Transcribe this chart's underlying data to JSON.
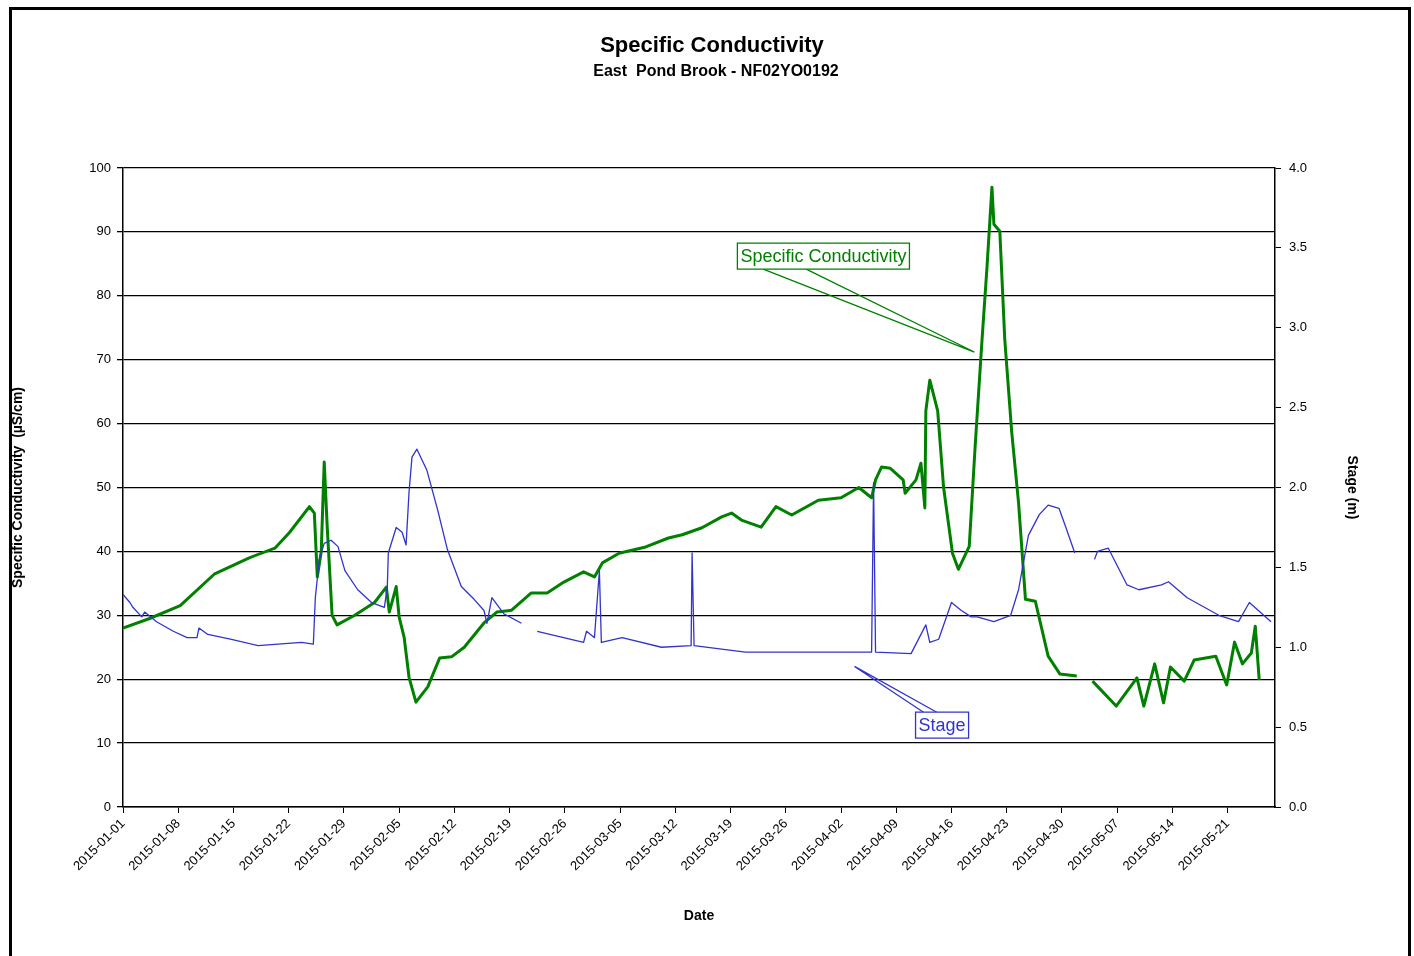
{
  "chart_data": {
    "type": "line",
    "title": "Specific Conductivity",
    "subtitle": "East  Pond Brook - NF02YO0192",
    "xlabel": "Date",
    "ylabel": "Specific Conductivity  (µS/cm)",
    "y2label": "Stage (m)",
    "xlim": [
      "2015-01-01",
      "2015-05-27"
    ],
    "xticks": [
      "2015-01-01",
      "2015-01-08",
      "2015-01-15",
      "2015-01-22",
      "2015-01-29",
      "2015-02-05",
      "2015-02-12",
      "2015-02-19",
      "2015-02-26",
      "2015-03-05",
      "2015-03-12",
      "2015-03-19",
      "2015-03-26",
      "2015-04-02",
      "2015-04-09",
      "2015-04-16",
      "2015-04-23",
      "2015-04-30",
      "2015-05-07",
      "2015-05-14",
      "2015-05-21"
    ],
    "ylim": [
      0,
      100
    ],
    "yticks": [
      0,
      10,
      20,
      30,
      40,
      50,
      60,
      70,
      80,
      90,
      100
    ],
    "y2lim": [
      0,
      4
    ],
    "y2ticks": [
      {
        "value": 0,
        "label": "0.0"
      },
      {
        "value": 0.5,
        "label": "0.5"
      },
      {
        "value": 1,
        "label": "1.0"
      },
      {
        "value": 1.5,
        "label": "1.5"
      },
      {
        "value": 2,
        "label": "2.0"
      },
      {
        "value": 2.5,
        "label": "2.5"
      },
      {
        "value": 3,
        "label": "3.0"
      },
      {
        "value": 3.5,
        "label": "3.5"
      },
      {
        "value": 4,
        "label": "4.0"
      }
    ],
    "grid": "y",
    "legend": false,
    "series": [
      {
        "name": "Specific Conductivity",
        "color": "#008000",
        "x": [
          "2015-01-01T00:00",
          "2015-01-04T09:00",
          "2015-01-08T06:00",
          "2015-01-12T15:00",
          "2015-01-17T00:00",
          "2015-01-20T06:00",
          "2015-01-22T03:00",
          "2015-01-24T15:00",
          "2015-01-25T06:00",
          "2015-01-25T15:00",
          "2015-01-26T03:00",
          "2015-01-26T12:00",
          "2015-01-26T21:00",
          "2015-01-27T12:00",
          "2015-01-28T03:00",
          "2015-01-30T09:00",
          "2015-02-01T21:00",
          "2015-02-03T09:00",
          "2015-02-03T18:00",
          "2015-02-04T15:00",
          "2015-02-05T00:00",
          "2015-02-05T15:00",
          "2015-02-06T06:00",
          "2015-02-07T03:00",
          "2015-02-08T15:00",
          "2015-02-10T03:00",
          "2015-02-11T15:00",
          "2015-02-13T06:00",
          "2015-02-15T18:00",
          "2015-02-17T09:00",
          "2015-02-19T06:00",
          "2015-02-21T18:00",
          "2015-02-23T18:00",
          "2015-02-25T21:00",
          "2015-02-28T09:00",
          "2015-03-01T18:00",
          "2015-03-02T18:00",
          "2015-03-04T21:00",
          "2015-03-08T06:00",
          "2015-03-11T03:00",
          "2015-03-12T21:00",
          "2015-03-15T09:00",
          "2015-03-17T21:00",
          "2015-03-19T03:00",
          "2015-03-20T09:00",
          "2015-03-22T21:00",
          "2015-03-24T18:00",
          "2015-03-26T18:00",
          "2015-03-30T03:00",
          "2015-04-02T00:00",
          "2015-04-04T06:00",
          "2015-04-05T21:00",
          "2015-04-06T09:00",
          "2015-04-07T03:00",
          "2015-04-08T06:00",
          "2015-04-09T21:00",
          "2015-04-10T03:00",
          "2015-04-11T12:00",
          "2015-04-12T03:00",
          "2015-04-12T15:00",
          "2015-04-12T18:00",
          "2015-04-13T06:00",
          "2015-04-14T06:00",
          "2015-04-15T00:00",
          "2015-04-16T03:00",
          "2015-04-16T21:00",
          "2015-04-18T06:00",
          "2015-04-19T00:00",
          "2015-04-19T21:00",
          "2015-04-20T12:00",
          "2015-04-21T03:00",
          "2015-04-21T09:00",
          "2015-04-22T03:00",
          "2015-04-22T18:00",
          "2015-04-23T15:00",
          "2015-04-24T12:00",
          "2015-04-25T09:00",
          "2015-04-26T15:00",
          "2015-04-28T06:00",
          "2015-04-29T18:00",
          "2015-05-01T21:00",
          "2015-05-02T21:00",
          "2015-05-03T21:00",
          "2015-05-06T21:00",
          "2015-05-09T12:00",
          "2015-05-10T09:00",
          "2015-05-11T18:00",
          "2015-05-12T21:00",
          "2015-05-13T18:00",
          "2015-05-15T12:00",
          "2015-05-16T18:00",
          "2015-05-19T12:00",
          "2015-05-20T21:00",
          "2015-05-21T21:00",
          "2015-05-22T21:00",
          "2015-05-24T00:00",
          "2015-05-24T12:00",
          "2015-05-25T00:00"
        ],
        "values": [
          28,
          29.5,
          31.5,
          36.5,
          39,
          40.5,
          43,
          47,
          46,
          36,
          40,
          54,
          44,
          30,
          28.5,
          30,
          32,
          34.4,
          30.5,
          34.5,
          29.7,
          26.6,
          20.3,
          16.4,
          18.8,
          23.3,
          23.5,
          25,
          28.8,
          30.5,
          30.8,
          33.5,
          33.5,
          35.2,
          36.8,
          36,
          38.2,
          39.7,
          40.7,
          42.1,
          42.6,
          43.7,
          45.4,
          46,
          44.9,
          43.8,
          47,
          45.7,
          48,
          48.4,
          50,
          48.4,
          51.2,
          53.2,
          53,
          51.2,
          49.1,
          51.2,
          53.8,
          46.8,
          62,
          66.8,
          62,
          50,
          39.7,
          37.2,
          40.8,
          56.5,
          73.2,
          84.5,
          97,
          91.2,
          90.1,
          73.2,
          58.8,
          47.6,
          32.5,
          32.2,
          23.6,
          20.8,
          20.5,
          null,
          19.7,
          15.8,
          20.2,
          15.8,
          22.4,
          16.3,
          21.9,
          19.7,
          23,
          23.6,
          19.1,
          25.8,
          22.4,
          24.1,
          28.3,
          19.9
        ]
      },
      {
        "name": "Stage",
        "color": "#3333cc",
        "axis": "y2",
        "x": [
          "2015-01-01T00:00",
          "2015-01-01T21:00",
          "2015-01-02T06:00",
          "2015-01-03T09:00",
          "2015-01-03T18:00",
          "2015-01-05T06:00",
          "2015-01-07T09:00",
          "2015-01-09T03:00",
          "2015-01-10T09:00",
          "2015-01-10T15:00",
          "2015-01-11T18:00",
          "2015-01-14T18:00",
          "2015-01-18T03:00",
          "2015-01-23T15:00",
          "2015-01-25T03:00",
          "2015-01-25T09:00",
          "2015-01-25T21:00",
          "2015-01-26T12:00",
          "2015-01-27T09:00",
          "2015-01-28T06:00",
          "2015-01-29T03:00",
          "2015-01-30T18:00",
          "2015-02-01T12:00",
          "2015-02-03T03:00",
          "2015-02-03T12:00",
          "2015-02-03T15:00",
          "2015-02-04T15:00",
          "2015-02-05T09:00",
          "2015-02-05T21:00",
          "2015-02-06T06:00",
          "2015-02-06T15:00",
          "2015-02-07T06:00",
          "2015-02-08T12:00",
          "2015-02-09T21:00",
          "2015-02-11T03:00",
          "2015-02-12T21:00",
          "2015-02-14T12:00",
          "2015-02-15T18:00",
          "2015-02-16T03:00",
          "2015-02-16T18:00",
          "2015-02-18T06:00",
          "2015-02-20T12:00",
          "2015-02-21T12:00",
          "2015-02-22T12:00",
          "2015-02-28T09:00",
          "2015-02-28T18:00",
          "2015-03-01T18:00",
          "2015-03-02T09:00",
          "2015-03-02T15:00",
          "2015-03-05T06:00",
          "2015-03-10T06:00",
          "2015-03-14T00:00",
          "2015-03-14T03:00",
          "2015-03-14T09:00",
          "2015-03-20T21:00",
          "2015-04-05T21:00",
          "2015-04-06T03:00",
          "2015-04-06T09:00",
          "2015-04-10T21:00",
          "2015-04-12T18:00",
          "2015-04-13T06:00",
          "2015-04-14T09:00",
          "2015-04-16T00:00",
          "2015-04-17T06:00",
          "2015-04-18T12:00",
          "2015-04-19T06:00",
          "2015-04-21T09:00",
          "2015-04-23T12:00",
          "2015-04-24T12:00",
          "2015-04-25T18:00",
          "2015-04-27T03:00",
          "2015-04-28T06:00",
          "2015-04-29T15:00",
          "2015-04-30T12:00",
          "2015-05-01T15:00",
          "2015-05-02T21:00",
          "2015-05-04T03:00",
          "2015-05-04T12:00",
          "2015-05-05T21:00",
          "2015-05-08T06:00",
          "2015-05-09T18:00",
          "2015-05-12T15:00",
          "2015-05-13T12:00",
          "2015-05-15T21:00",
          "2015-05-19T21:00",
          "2015-05-22T09:00",
          "2015-05-23T18:00",
          "2015-05-26T12:00"
        ],
        "values": [
          1.33,
          1.28,
          1.25,
          1.19,
          1.22,
          1.16,
          1.1,
          1.06,
          1.06,
          1.12,
          1.08,
          1.05,
          1.01,
          1.03,
          1.02,
          1.31,
          1.55,
          1.65,
          1.67,
          1.63,
          1.48,
          1.36,
          1.28,
          1.25,
          1.38,
          1.59,
          1.75,
          1.72,
          1.64,
          1.97,
          2.19,
          2.24,
          2.11,
          1.86,
          1.61,
          1.38,
          1.3,
          1.23,
          1.15,
          1.31,
          1.21,
          1.15,
          null,
          1.1,
          1.03,
          1.1,
          1.06,
          1.48,
          1.03,
          1.06,
          1,
          1.01,
          1.59,
          1.01,
          0.97,
          0.97,
          2.03,
          0.97,
          0.96,
          1.14,
          1.03,
          1.05,
          1.28,
          1.23,
          1.19,
          1.19,
          1.16,
          1.2,
          1.36,
          1.7,
          1.83,
          1.89,
          1.87,
          1.75,
          1.59,
          null,
          1.55,
          1.6,
          1.62,
          1.39,
          1.36,
          1.39,
          1.41,
          1.31,
          1.2,
          1.16,
          1.28,
          1.16
        ]
      }
    ]
  }
}
